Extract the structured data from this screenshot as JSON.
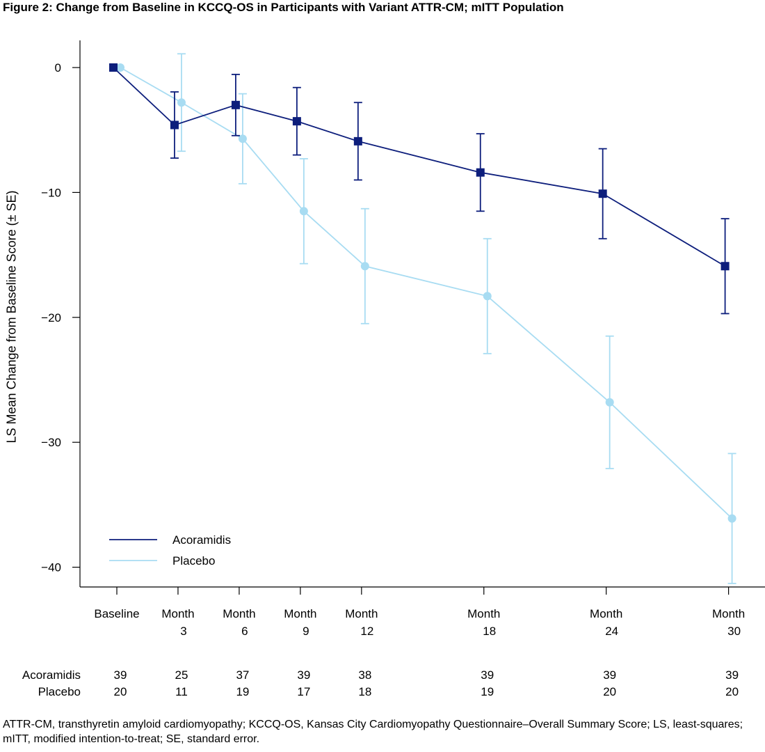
{
  "title": "Figure 2: Change from Baseline in KCCQ-OS in Participants with Variant ATTR-CM; mITT Population",
  "footnote": "ATTR-CM, transthyretin amyloid cardiomyopathy; KCCQ-OS, Kansas City Cardiomyopathy Questionnaire–Overall Summary Score; LS, least-squares; mITT, modified intention-to-treat; SE, standard error.",
  "colors": {
    "acoramidis": "#0d1e7c",
    "placebo": "#a8dcf2"
  },
  "chart_data": {
    "type": "line",
    "title": "Figure 2: Change from Baseline in KCCQ-OS in Participants with Variant ATTR-CM; mITT Population",
    "ylabel": "LS Mean Change from Baseline Score (± SE)",
    "xlabel": "",
    "x_months": [
      0,
      3,
      6,
      9,
      12,
      18,
      24,
      30
    ],
    "x_tick_labels": [
      {
        "line1": "Baseline",
        "line2": ""
      },
      {
        "line1": "Month",
        "line2": "3"
      },
      {
        "line1": "Month",
        "line2": "6"
      },
      {
        "line1": "Month",
        "line2": "9"
      },
      {
        "line1": "Month",
        "line2": "12"
      },
      {
        "line1": "Month",
        "line2": "18"
      },
      {
        "line1": "Month",
        "line2": "24"
      },
      {
        "line1": "Month",
        "line2": "30"
      }
    ],
    "yticks": [
      0,
      -10,
      -20,
      -30,
      -40
    ],
    "ytick_labels": [
      "0",
      "−10",
      "−20",
      "−30",
      "−40"
    ],
    "ylim": [
      -41.5,
      2.2
    ],
    "legend_position": "bottom-left",
    "series": [
      {
        "name": "Acoramidis",
        "marker": "square",
        "values": [
          0,
          -4.6,
          -3.0,
          -4.3,
          -5.9,
          -8.4,
          -10.1,
          -15.9
        ],
        "se": [
          0,
          2.65,
          2.45,
          2.7,
          3.1,
          3.1,
          3.6,
          3.8
        ],
        "n": [
          "39",
          "25",
          "37",
          "39",
          "38",
          "39",
          "39",
          "39"
        ]
      },
      {
        "name": "Placebo",
        "marker": "circle",
        "values": [
          0,
          -2.8,
          -5.7,
          -11.5,
          -15.9,
          -18.3,
          -26.8,
          -36.1
        ],
        "se": [
          0,
          3.9,
          3.6,
          4.2,
          4.6,
          4.6,
          5.3,
          5.2
        ],
        "n": [
          "20",
          "11",
          "19",
          "17",
          "18",
          "19",
          "20",
          "20"
        ]
      }
    ]
  }
}
